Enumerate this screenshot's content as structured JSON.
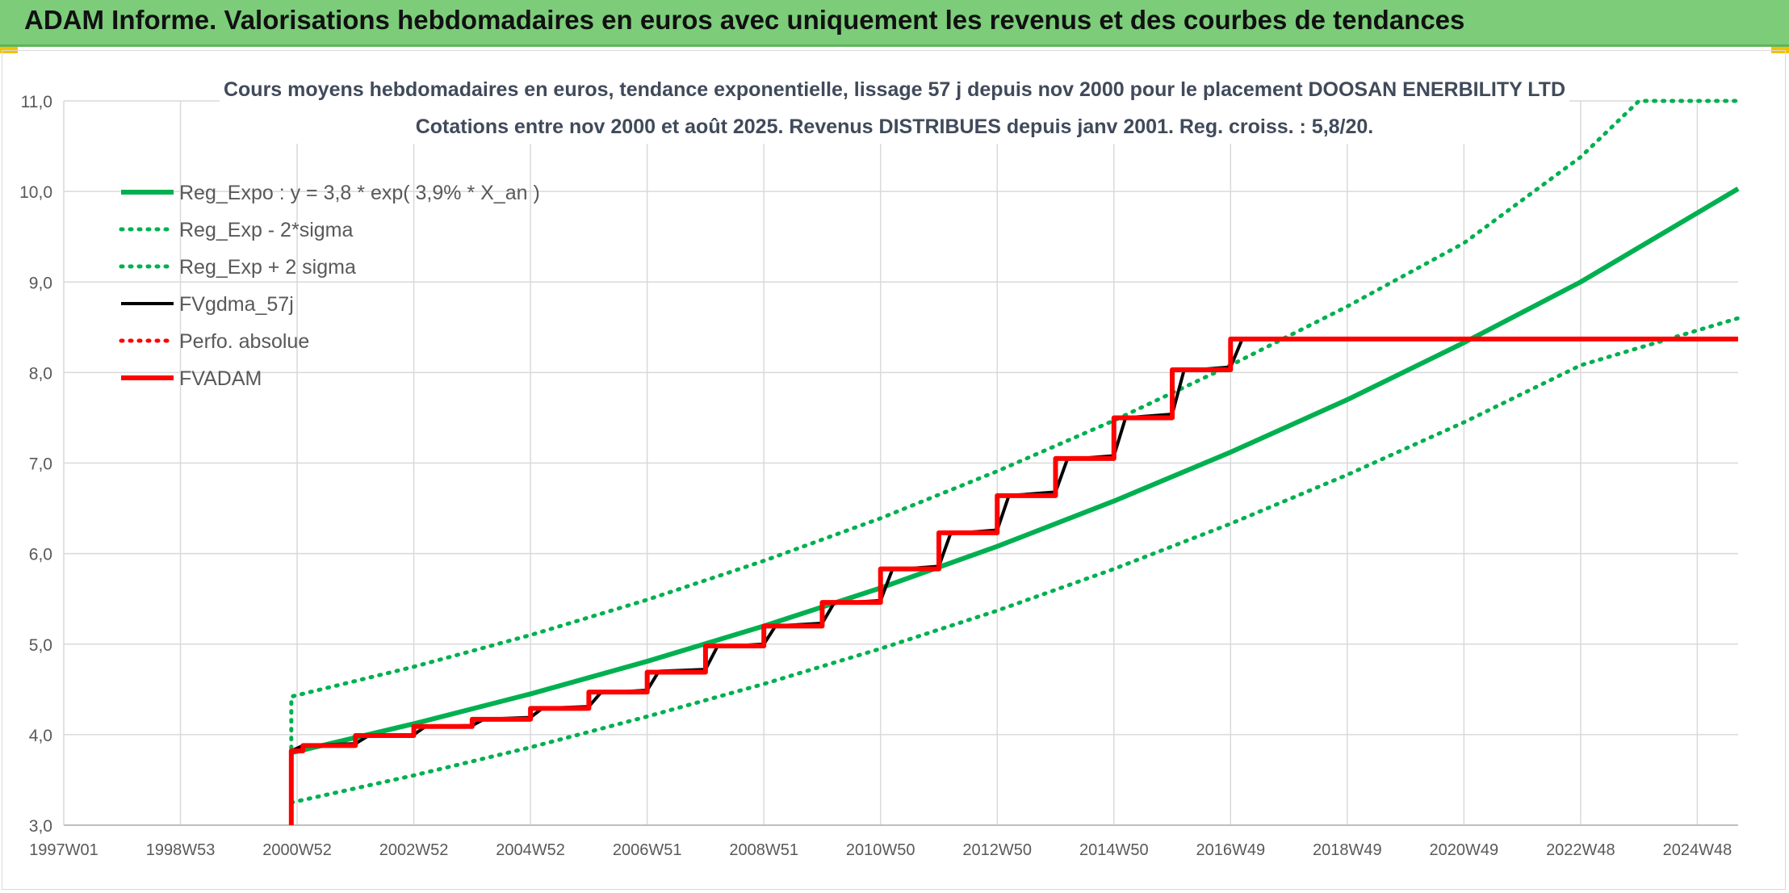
{
  "header": {
    "title": "ADAM Informe. Valorisations hebdomadaires en euros avec uniquement les revenus et des courbes de tendances"
  },
  "colors": {
    "header_bg": "#7ccc7a",
    "green": "#00b050",
    "black": "#000000",
    "red": "#ff0000",
    "grid": "#d9d9d9"
  },
  "chart_data": {
    "type": "line",
    "title": "Cours moyens hebdomadaires en euros, tendance exponentielle, lissage 57 j depuis nov 2000 pour le placement DOOSAN ENERBILITY LTD",
    "subtitle": "Cotations entre nov 2000 et août 2025. Revenus DISTRIBUES depuis janv 2001. Reg. croiss. : 5,8/20.",
    "xlabel": "",
    "ylabel": "",
    "ylim": [
      3,
      11
    ],
    "yticks": [
      "3,0",
      "4,0",
      "5,0",
      "6,0",
      "7,0",
      "8,0",
      "9,0",
      "10,0",
      "11,0"
    ],
    "xlim": [
      1997.0,
      2025.7
    ],
    "xticks": [
      {
        "label": "1997W01",
        "x": 1997.0
      },
      {
        "label": "1998W53",
        "x": 1999.0
      },
      {
        "label": "2000W52",
        "x": 2001.0
      },
      {
        "label": "2002W52",
        "x": 2003.0
      },
      {
        "label": "2004W52",
        "x": 2005.0
      },
      {
        "label": "2006W51",
        "x": 2007.0
      },
      {
        "label": "2008W51",
        "x": 2009.0
      },
      {
        "label": "2010W50",
        "x": 2011.0
      },
      {
        "label": "2012W50",
        "x": 2013.0
      },
      {
        "label": "2014W50",
        "x": 2015.0
      },
      {
        "label": "2016W49",
        "x": 2017.0
      },
      {
        "label": "2018W49",
        "x": 2019.0
      },
      {
        "label": "2020W49",
        "x": 2021.0
      },
      {
        "label": "2022W48",
        "x": 2023.0
      },
      {
        "label": "2024W48",
        "x": 2025.0
      }
    ],
    "grid": true,
    "legend_position": "top-left",
    "series": [
      {
        "name": "Reg_Expo : y = 3,8 * exp( 3,9% *  X_an )",
        "style": "solid",
        "color": "#00b050",
        "x": [
          2000.9,
          2003.0,
          2005.0,
          2007.0,
          2009.0,
          2011.0,
          2013.0,
          2015.0,
          2017.0,
          2019.0,
          2021.0,
          2023.0,
          2025.7
        ],
        "y": [
          3.8,
          4.12,
          4.45,
          4.81,
          5.2,
          5.62,
          6.08,
          6.58,
          7.12,
          7.7,
          8.33,
          9.0,
          10.03
        ]
      },
      {
        "name": "Reg_Exp - 2*sigma",
        "style": "dotted",
        "color": "#00b050",
        "x": [
          2000.9,
          2003.0,
          2005.0,
          2007.0,
          2009.0,
          2011.0,
          2013.0,
          2015.0,
          2017.0,
          2019.0,
          2021.0,
          2023.0,
          2025.7
        ],
        "y": [
          3.25,
          3.55,
          3.86,
          4.2,
          4.56,
          4.95,
          5.37,
          5.83,
          6.33,
          6.87,
          7.45,
          8.08,
          8.6
        ]
      },
      {
        "name": "Reg_Exp + 2 sigma",
        "style": "dotted",
        "color": "#00b050",
        "x": [
          2000.9,
          2000.9,
          2003.0,
          2005.0,
          2007.0,
          2009.0,
          2011.0,
          2013.0,
          2015.0,
          2017.0,
          2019.0,
          2021.0,
          2023.0,
          2024.0,
          2025.7
        ],
        "y": [
          3.85,
          4.42,
          4.75,
          5.1,
          5.49,
          5.92,
          6.39,
          6.91,
          7.47,
          8.08,
          8.73,
          9.43,
          10.38,
          11.0,
          11.0
        ]
      },
      {
        "name": "FVgdma_57j",
        "style": "solid",
        "color": "#000000",
        "x": [
          2000.9,
          2001.1,
          2002.0,
          2002.2,
          2003.0,
          2003.2,
          2004.0,
          2004.2,
          2005.0,
          2005.2,
          2006.0,
          2006.2,
          2007.0,
          2007.2,
          2008.0,
          2008.2,
          2009.0,
          2009.2,
          2010.0,
          2010.2,
          2011.0,
          2011.2,
          2012.0,
          2012.2,
          2013.0,
          2013.2,
          2014.0,
          2014.2,
          2015.0,
          2015.2,
          2016.0,
          2016.2,
          2017.0,
          2017.2
        ],
        "y": [
          3.82,
          3.88,
          3.9,
          3.98,
          4.0,
          4.09,
          4.1,
          4.17,
          4.19,
          4.29,
          4.31,
          4.46,
          4.49,
          4.7,
          4.72,
          4.97,
          5.0,
          5.2,
          5.23,
          5.45,
          5.48,
          5.82,
          5.86,
          6.22,
          6.26,
          6.64,
          6.68,
          7.04,
          7.08,
          7.5,
          7.54,
          8.02,
          8.06,
          8.37
        ]
      },
      {
        "name": "Perfo. absolue",
        "style": "dotted",
        "color": "#ff0000",
        "x": [],
        "y": []
      },
      {
        "name": "FVADAM",
        "style": "solid-thick",
        "color": "#ff0000",
        "x": [
          2000.9,
          2000.9,
          2001.1,
          2002.0,
          2003.0,
          2004.0,
          2005.0,
          2006.0,
          2007.0,
          2008.0,
          2009.0,
          2010.0,
          2011.0,
          2012.0,
          2013.0,
          2014.0,
          2015.0,
          2016.0,
          2017.0,
          2025.7
        ],
        "y": [
          3.0,
          3.82,
          3.88,
          3.99,
          4.09,
          4.17,
          4.29,
          4.47,
          4.69,
          4.98,
          5.2,
          5.46,
          5.83,
          6.23,
          6.64,
          7.05,
          7.5,
          8.03,
          8.37,
          8.37
        ]
      }
    ]
  }
}
